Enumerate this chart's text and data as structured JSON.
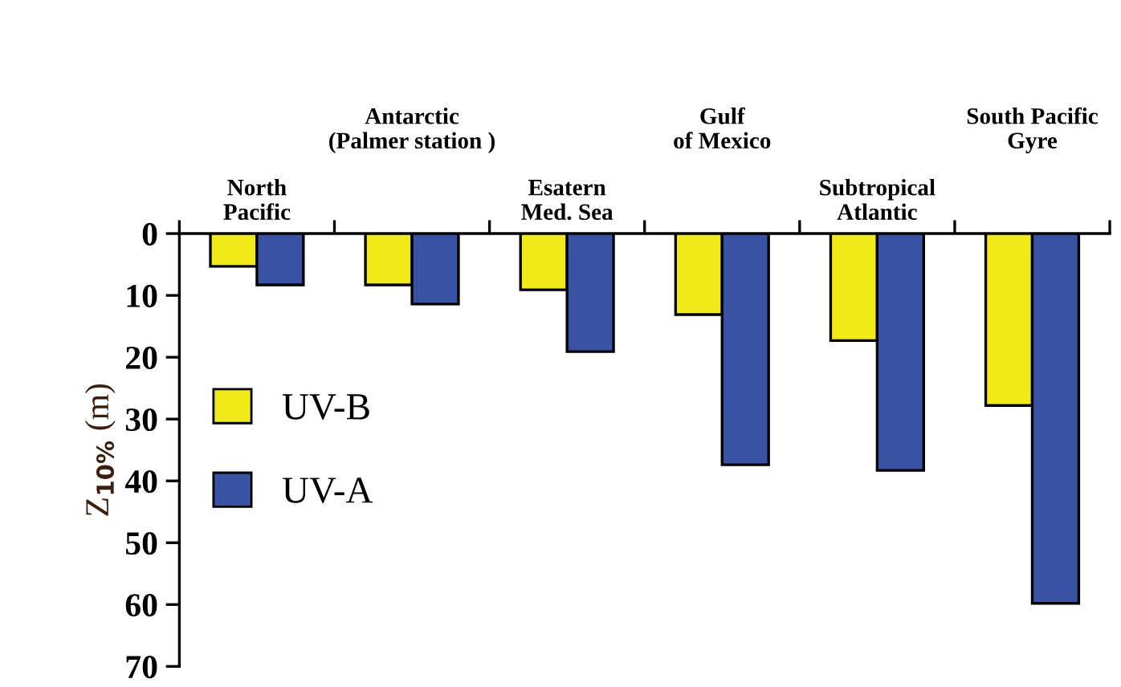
{
  "chart_data": {
    "type": "bar",
    "ylabel": "Z$_{10%}$ (m)",
    "categories": [
      "North\nPacific",
      "Antarctic\n(Palmer station )",
      "Esatern\nMed. Sea",
      "Gulf\nof Mexico",
      "Subtropical\nAtlantic",
      "South Pacific\nGyre"
    ],
    "series": [
      {
        "name": "UV-B",
        "color": "#f2ea17",
        "values": [
          5.3,
          8.3,
          9.1,
          13.1,
          17.3,
          27.8
        ]
      },
      {
        "name": "UV-A",
        "color": "#3853a4",
        "values": [
          8.3,
          11.4,
          19.1,
          37.4,
          38.3,
          59.8
        ]
      }
    ],
    "ylim": [
      70,
      0
    ],
    "yticks": [
      0,
      10,
      20,
      30,
      40,
      50,
      60,
      70
    ],
    "legend": "center left",
    "grid": false
  }
}
